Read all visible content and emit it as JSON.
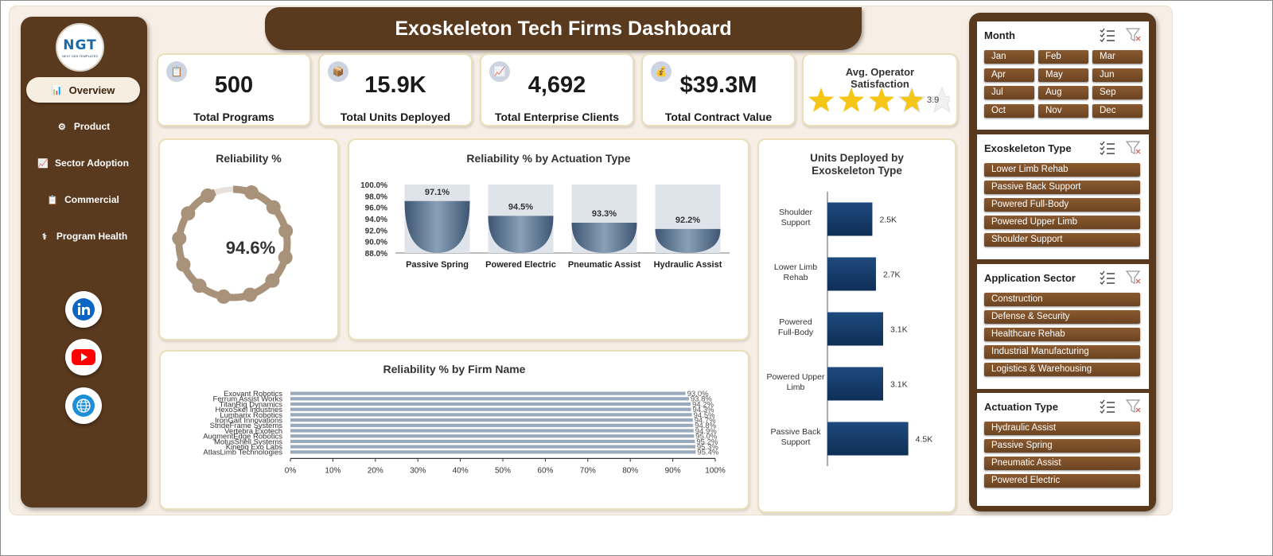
{
  "title": "Exoskeleton Tech Firms Dashboard",
  "logo": {
    "text": "NGT",
    "subtext": "NEXT GEN TEMPLATES"
  },
  "nav": [
    {
      "label": "Overview",
      "icon": "bar-chart-icon",
      "active": true
    },
    {
      "label": "Product",
      "icon": "gear-icon",
      "active": false
    },
    {
      "label": "Sector Adoption",
      "icon": "line-chart-icon",
      "active": false
    },
    {
      "label": "Commercial",
      "icon": "clipboard-icon",
      "active": false
    },
    {
      "label": "Program Health",
      "icon": "health-icon",
      "active": false
    }
  ],
  "social": [
    {
      "name": "linkedin-icon",
      "color": "#0a66c2"
    },
    {
      "name": "youtube-icon",
      "color": "#ff0000"
    },
    {
      "name": "globe-icon",
      "color": "#1d8fd8"
    }
  ],
  "kpis": [
    {
      "value": "500",
      "label": "Total Programs",
      "icon": "clipboard-icon"
    },
    {
      "value": "15.9K",
      "label": "Total Units Deployed",
      "icon": "box-icon"
    },
    {
      "value": "4,692",
      "label": "Total Enterprise Clients",
      "icon": "trend-chart-icon"
    },
    {
      "value": "$39.3M",
      "label": "Total Contract Value",
      "icon": "money-bag-icon"
    }
  ],
  "rating": {
    "label": "Avg. Operator Satisfaction",
    "value": "3.9",
    "stars": 3.9,
    "max": 5,
    "color": "#f5c518"
  },
  "colors": {
    "brown": "#5a3a1e",
    "navy": "#0e2f56",
    "ring": "#a8927a"
  },
  "charts": [
    {
      "title": "Reliability %",
      "chart_data": {
        "type": "pie",
        "values": [
          94.6
        ],
        "value_label": "94.6%",
        "max": 100
      }
    },
    {
      "title": "Reliability % by Actuation Type",
      "chart_data": {
        "type": "bar",
        "categories": [
          "Passive Spring",
          "Powered Electric",
          "Pneumatic Assist",
          "Hydraulic Assist"
        ],
        "values": [
          97.1,
          94.5,
          93.3,
          92.2
        ],
        "data_labels": [
          "97.1%",
          "94.5%",
          "93.3%",
          "92.2%"
        ],
        "ylim": [
          88.0,
          100.0
        ],
        "yticks": [
          "100.0%",
          "98.0%",
          "96.0%",
          "94.0%",
          "92.0%",
          "90.0%",
          "88.0%"
        ]
      }
    },
    {
      "title": "Reliability % by Firm Name",
      "chart_data": {
        "type": "bar",
        "orientation": "horizontal",
        "categories": [
          "Exovant Robotics",
          "Ferrum Assist Works",
          "TitanRig Dynamics",
          "HexoSkel Industries",
          "Lumbarix Robotics",
          "IronGait Innovations",
          "StrideFrame Systems",
          "Vertebra Exotech",
          "AugmentEdge Robotics",
          "MotusShell Systems",
          "Kinetiq Exo Labs",
          "AtlasLimb Technologies"
        ],
        "values": [
          93.0,
          93.8,
          94.2,
          94.3,
          94.5,
          94.7,
          94.8,
          94.9,
          95.0,
          95.2,
          95.3,
          95.4
        ],
        "data_labels": [
          "93.0%",
          "93.8%",
          "94.2%",
          "94.3%",
          "94.5%",
          "94.7%",
          "94.8%",
          "94.9%",
          "95.0%",
          "95.2%",
          "95.3%",
          "95.4%"
        ],
        "xlim": [
          0,
          100
        ],
        "xticks": [
          "0%",
          "10%",
          "20%",
          "30%",
          "40%",
          "50%",
          "60%",
          "70%",
          "80%",
          "90%",
          "100%"
        ]
      }
    },
    {
      "title": "Units Deployed by Exoskeleton Type",
      "chart_data": {
        "type": "bar",
        "orientation": "horizontal",
        "categories": [
          "Shoulder Support",
          "Lower Limb Rehab",
          "Powered Full-Body",
          "Powered Upper Limb",
          "Passive Back Support"
        ],
        "values": [
          2.5,
          2.7,
          3.1,
          3.1,
          4.5
        ],
        "data_labels": [
          "2.5K",
          "2.7K",
          "3.1K",
          "3.1K",
          "4.5K"
        ],
        "unit": "K"
      }
    }
  ],
  "filters": [
    {
      "title": "Month",
      "items": [
        "Jan",
        "Feb",
        "Mar",
        "Apr",
        "May",
        "Jun",
        "Jul",
        "Aug",
        "Sep",
        "Oct",
        "Nov",
        "Dec"
      ],
      "columns": 3
    },
    {
      "title": "Exoskeleton Type",
      "items": [
        "Lower Limb Rehab",
        "Passive Back Support",
        "Powered Full-Body",
        "Powered Upper Limb",
        "Shoulder Support"
      ],
      "columns": 1
    },
    {
      "title": "Application Sector",
      "items": [
        "Construction",
        "Defense & Security",
        "Healthcare Rehab",
        "Industrial Manufacturing",
        "Logistics & Warehousing"
      ],
      "columns": 1
    },
    {
      "title": "Actuation Type",
      "items": [
        "Hydraulic Assist",
        "Passive Spring",
        "Pneumatic Assist",
        "Powered Electric"
      ],
      "columns": 1
    }
  ]
}
